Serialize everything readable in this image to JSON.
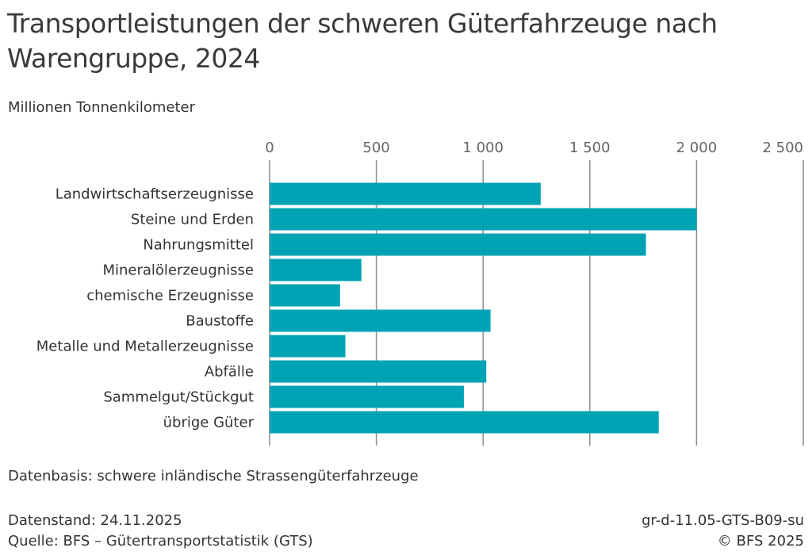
{
  "header": {
    "title": "Transportleistungen der schweren Güterfahrzeuge nach Warengruppe, 2024",
    "unit": "Millionen Tonnenkilometer"
  },
  "chart_data": {
    "type": "bar",
    "orientation": "horizontal",
    "categories": [
      "Landwirtschaftserzeugnisse",
      "Steine und Erden",
      "Nahrungsmittel",
      "Mineralölerzeugnisse",
      "chemische Erzeugnisse",
      "Baustoffe",
      "Metalle und Metallerzeugnisse",
      "Abfälle",
      "Sammelgut/Stückgut",
      "übrige Güter"
    ],
    "values": [
      1270,
      2000,
      1763,
      430,
      330,
      1035,
      355,
      1015,
      910,
      1823
    ],
    "xlim": [
      0,
      2500
    ],
    "ticks": [
      0,
      500,
      1000,
      1500,
      2000,
      2500
    ],
    "tick_labels": [
      "0",
      "500",
      "1 000",
      "1 500",
      "2 000",
      "2 500"
    ],
    "axis_position": "top",
    "grid": true,
    "bar_color": "#00a3b4"
  },
  "footer": {
    "note": "Datenbasis: schwere inländische Strassengüterfahrzeuge",
    "date": "Datenstand: 24.11.2025",
    "source": "Quelle: BFS – Gütertransportstatistik (GTS)",
    "code": "gr-d-11.05-GTS-B09-su",
    "copyright": "© BFS 2025"
  }
}
